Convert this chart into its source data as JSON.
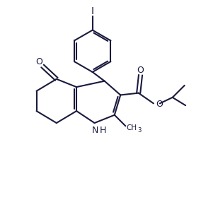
{
  "bg_color": "#ffffff",
  "line_color": "#1a1a3e",
  "line_width": 1.5,
  "font_size": 8.5,
  "figsize": [
    2.84,
    3.0
  ],
  "dpi": 100,
  "xlim": [
    0,
    10
  ],
  "ylim": [
    0,
    10.5
  ]
}
